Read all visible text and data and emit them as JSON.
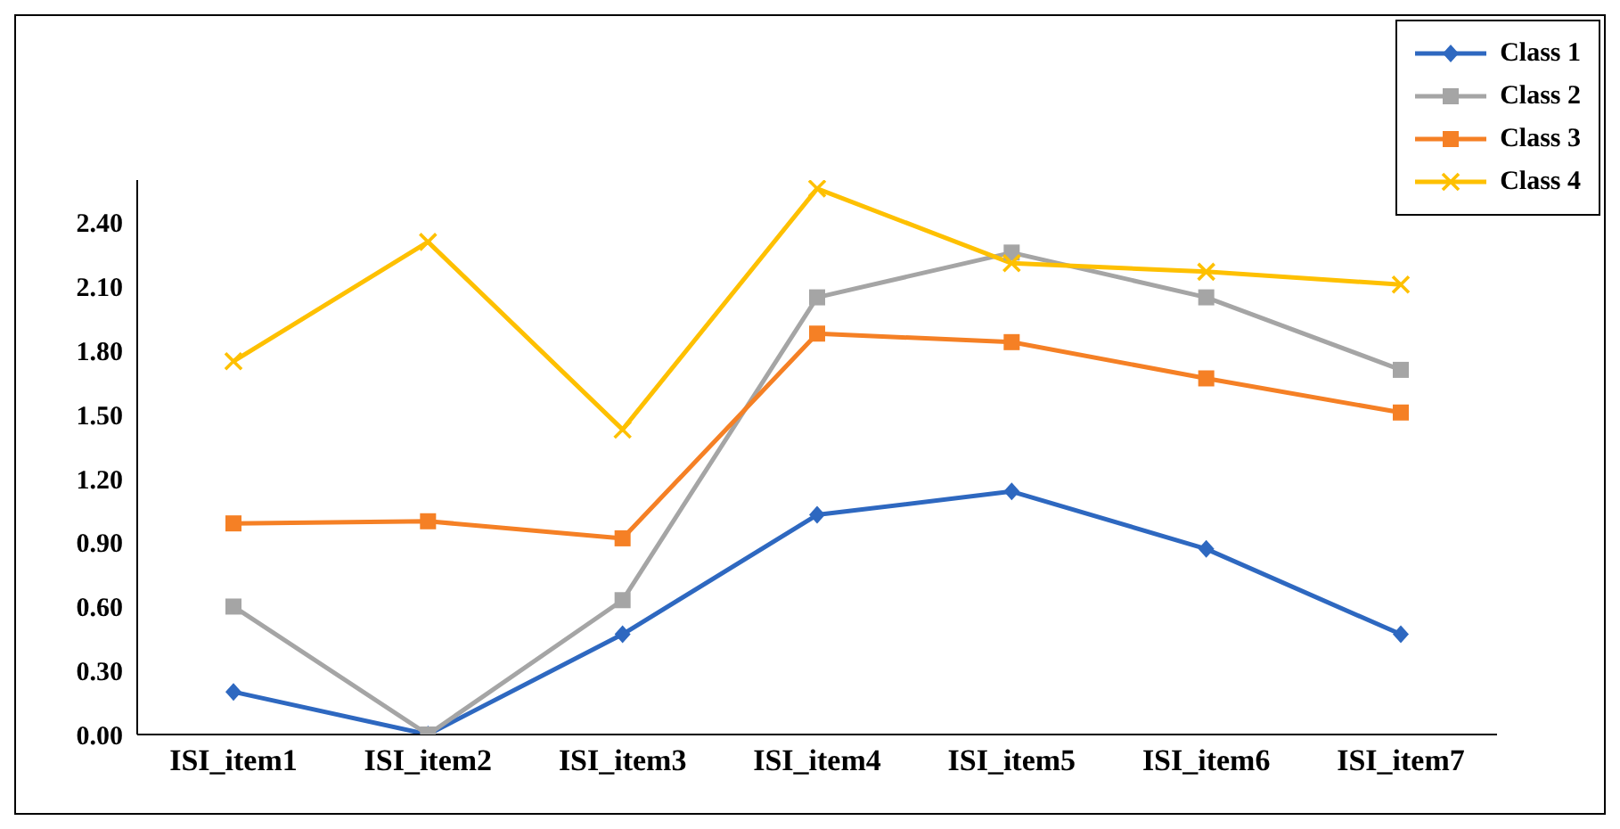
{
  "chart_data": {
    "type": "line",
    "categories": [
      "ISI_item1",
      "ISI_item2",
      "ISI_item3",
      "ISI_item4",
      "ISI_item5",
      "ISI_item6",
      "ISI_item7"
    ],
    "series": [
      {
        "name": "Class 1",
        "color": "#2e68c0",
        "marker": "diamond",
        "values": [
          0.2,
          0.0,
          0.47,
          1.03,
          1.14,
          0.87,
          0.47
        ]
      },
      {
        "name": "Class 2",
        "color": "#a5a5a5",
        "marker": "square",
        "values": [
          0.6,
          0.0,
          0.63,
          2.05,
          2.26,
          2.05,
          1.71
        ]
      },
      {
        "name": "Class 3",
        "color": "#f58025",
        "marker": "square",
        "values": [
          0.99,
          1.0,
          0.92,
          1.88,
          1.84,
          1.67,
          1.51
        ]
      },
      {
        "name": "Class 4",
        "color": "#fec000",
        "marker": "cross",
        "values": [
          1.75,
          2.31,
          1.43,
          2.56,
          2.21,
          2.17,
          2.11
        ]
      }
    ],
    "ylim": [
      0,
      2.6
    ],
    "yticks": [
      {
        "value": 0,
        "label": "0.00"
      },
      {
        "value": 0.3,
        "label": "0.30"
      },
      {
        "value": 0.6,
        "label": "0.60"
      },
      {
        "value": 0.9,
        "label": "0.90"
      },
      {
        "value": 1.2,
        "label": "1.20"
      },
      {
        "value": 1.5,
        "label": "1.50"
      },
      {
        "value": 1.8,
        "label": "1.80"
      },
      {
        "value": 2.1,
        "label": "2.10"
      },
      {
        "value": 2.4,
        "label": "2.40"
      }
    ],
    "grid": false,
    "legend": "top right",
    "line_style": "solid"
  }
}
